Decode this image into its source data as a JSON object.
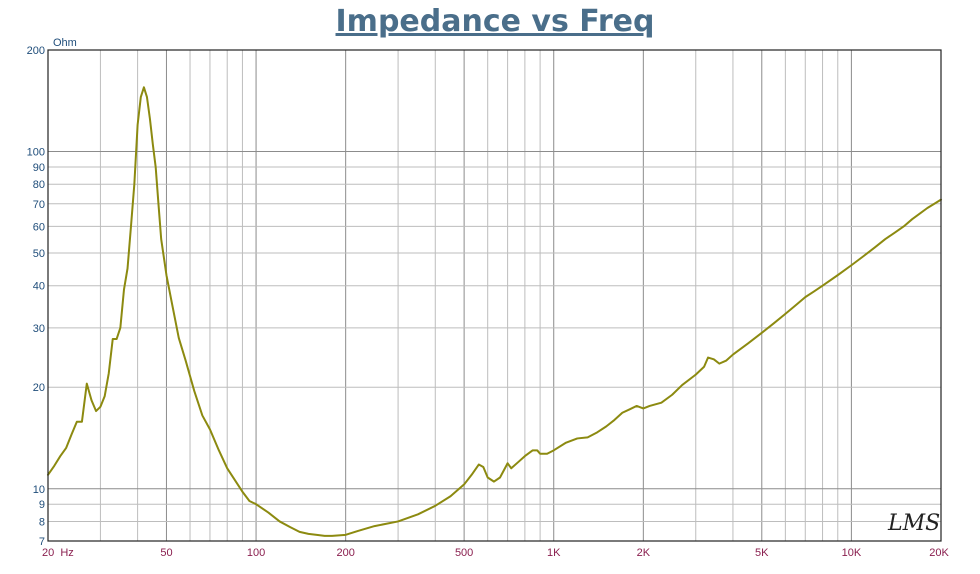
{
  "chart_data": {
    "type": "line",
    "title": "Impedance vs Freq",
    "ylabel": "Ohm",
    "xlabel": "",
    "x_scale": "log",
    "y_scale": "log",
    "xlim": [
      20,
      20000
    ],
    "ylim": [
      7,
      200
    ],
    "grid": true,
    "x_ticks": [
      {
        "value": 20,
        "label": "20  Hz"
      },
      {
        "value": 50,
        "label": "50"
      },
      {
        "value": 100,
        "label": "100"
      },
      {
        "value": 200,
        "label": "200"
      },
      {
        "value": 500,
        "label": "500"
      },
      {
        "value": 1000,
        "label": "1K"
      },
      {
        "value": 2000,
        "label": "2K"
      },
      {
        "value": 5000,
        "label": "5K"
      },
      {
        "value": 10000,
        "label": "10K"
      },
      {
        "value": 20000,
        "label": "20K"
      }
    ],
    "y_ticks": [
      {
        "value": 7,
        "label": "7"
      },
      {
        "value": 8,
        "label": "8"
      },
      {
        "value": 9,
        "label": "9"
      },
      {
        "value": 10,
        "label": "10"
      },
      {
        "value": 20,
        "label": "20"
      },
      {
        "value": 30,
        "label": "30"
      },
      {
        "value": 40,
        "label": "40"
      },
      {
        "value": 50,
        "label": "50"
      },
      {
        "value": 60,
        "label": "60"
      },
      {
        "value": 70,
        "label": "70"
      },
      {
        "value": 80,
        "label": "80"
      },
      {
        "value": 90,
        "label": "90"
      },
      {
        "value": 100,
        "label": "100"
      },
      {
        "value": 200,
        "label": "200"
      }
    ],
    "series": [
      {
        "color": "#8c8a10",
        "points": [
          [
            20,
            11.0
          ],
          [
            21,
            11.7
          ],
          [
            22,
            12.5
          ],
          [
            23,
            13.2
          ],
          [
            24,
            14.5
          ],
          [
            25,
            15.8
          ],
          [
            26,
            15.8
          ],
          [
            27,
            20.5
          ],
          [
            28,
            18.3
          ],
          [
            29,
            17.0
          ],
          [
            30,
            17.5
          ],
          [
            31,
            18.8
          ],
          [
            32,
            22.0
          ],
          [
            33,
            27.8
          ],
          [
            34,
            27.8
          ],
          [
            35,
            30.0
          ],
          [
            36,
            39.0
          ],
          [
            37,
            45.0
          ],
          [
            38,
            60.0
          ],
          [
            39,
            80.0
          ],
          [
            40,
            120.0
          ],
          [
            41,
            145.0
          ],
          [
            42,
            155.0
          ],
          [
            43,
            145.0
          ],
          [
            44,
            125.0
          ],
          [
            45,
            105.0
          ],
          [
            46,
            90.0
          ],
          [
            47,
            70.0
          ],
          [
            48,
            55.0
          ],
          [
            50,
            43.0
          ],
          [
            52,
            36.0
          ],
          [
            55,
            28.0
          ],
          [
            58,
            24.0
          ],
          [
            62,
            19.5
          ],
          [
            66,
            16.5
          ],
          [
            70,
            15.0
          ],
          [
            75,
            13.0
          ],
          [
            80,
            11.5
          ],
          [
            90,
            9.8
          ],
          [
            95,
            9.2
          ],
          [
            100,
            9.0
          ],
          [
            110,
            8.5
          ],
          [
            120,
            8.0
          ],
          [
            130,
            7.7
          ],
          [
            140,
            7.45
          ],
          [
            150,
            7.35
          ],
          [
            160,
            7.3
          ],
          [
            170,
            7.25
          ],
          [
            180,
            7.25
          ],
          [
            200,
            7.3
          ],
          [
            220,
            7.5
          ],
          [
            250,
            7.75
          ],
          [
            300,
            8.0
          ],
          [
            350,
            8.4
          ],
          [
            400,
            8.9
          ],
          [
            450,
            9.5
          ],
          [
            500,
            10.3
          ],
          [
            530,
            11.0
          ],
          [
            560,
            11.8
          ],
          [
            580,
            11.6
          ],
          [
            600,
            10.8
          ],
          [
            630,
            10.5
          ],
          [
            660,
            10.8
          ],
          [
            700,
            11.9
          ],
          [
            720,
            11.5
          ],
          [
            760,
            12.0
          ],
          [
            800,
            12.5
          ],
          [
            850,
            13.0
          ],
          [
            880,
            13.0
          ],
          [
            900,
            12.7
          ],
          [
            950,
            12.7
          ],
          [
            1000,
            13.0
          ],
          [
            1100,
            13.7
          ],
          [
            1200,
            14.1
          ],
          [
            1300,
            14.2
          ],
          [
            1400,
            14.7
          ],
          [
            1500,
            15.3
          ],
          [
            1600,
            16.0
          ],
          [
            1700,
            16.8
          ],
          [
            1800,
            17.2
          ],
          [
            1900,
            17.6
          ],
          [
            2000,
            17.3
          ],
          [
            2100,
            17.6
          ],
          [
            2300,
            18.0
          ],
          [
            2500,
            19.0
          ],
          [
            2700,
            20.3
          ],
          [
            3000,
            21.8
          ],
          [
            3200,
            23.0
          ],
          [
            3300,
            24.5
          ],
          [
            3450,
            24.2
          ],
          [
            3600,
            23.5
          ],
          [
            3800,
            24.0
          ],
          [
            4000,
            25.0
          ],
          [
            4500,
            27.0
          ],
          [
            5000,
            29.0
          ],
          [
            5500,
            31.0
          ],
          [
            6000,
            33.0
          ],
          [
            6500,
            35.0
          ],
          [
            7000,
            37.0
          ],
          [
            7500,
            38.5
          ],
          [
            8000,
            40.0
          ],
          [
            9000,
            43.0
          ],
          [
            10000,
            46.0
          ],
          [
            11000,
            49.0
          ],
          [
            12000,
            52.0
          ],
          [
            13000,
            55.0
          ],
          [
            14000,
            57.5
          ],
          [
            15000,
            60.0
          ],
          [
            16000,
            63.0
          ],
          [
            17000,
            65.5
          ],
          [
            18000,
            68.0
          ],
          [
            19000,
            70.0
          ],
          [
            20000,
            72.0
          ]
        ]
      }
    ]
  },
  "logo": {
    "text": "LMS"
  }
}
